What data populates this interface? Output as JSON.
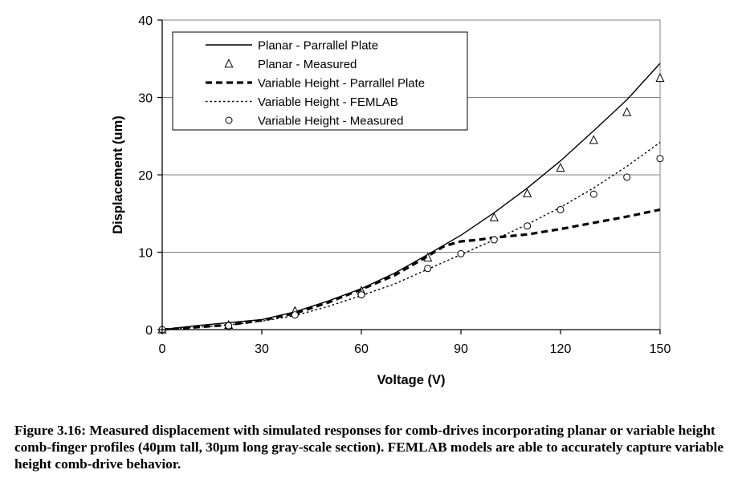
{
  "chart_data": {
    "type": "line",
    "title": "",
    "xlabel": "Voltage (V)",
    "ylabel": "Displacement (um)",
    "xlim": [
      0,
      150
    ],
    "ylim": [
      0,
      40
    ],
    "x_ticks": [
      "0",
      "30",
      "60",
      "90",
      "120",
      "150"
    ],
    "y_ticks": [
      "0",
      "10",
      "20",
      "30",
      "40"
    ],
    "grid": "horizontal",
    "legend_position": "top-left",
    "series": [
      {
        "name": "Planar - Parrallel Plate",
        "style": "solid",
        "x": [
          0,
          10,
          20,
          30,
          40,
          50,
          60,
          70,
          80,
          90,
          100,
          110,
          120,
          130,
          140,
          150
        ],
        "y": [
          0,
          0.5,
          0.9,
          1.3,
          2.3,
          3.7,
          5.3,
          7.3,
          9.7,
          12.2,
          15.1,
          18.3,
          21.8,
          25.7,
          29.7,
          34.4
        ]
      },
      {
        "name": "Planar - Measured",
        "style": "triangle",
        "x": [
          0,
          20,
          40,
          60,
          80,
          100,
          110,
          120,
          130,
          140,
          150
        ],
        "y": [
          0,
          0.6,
          2.4,
          5.0,
          9.3,
          14.5,
          17.6,
          20.9,
          24.5,
          28.1,
          32.5
        ]
      },
      {
        "name": "Variable Height - Parrallel Plate",
        "style": "dashed",
        "x": [
          0,
          10,
          20,
          30,
          40,
          50,
          60,
          70,
          80,
          85,
          90,
          95,
          100,
          110,
          120,
          130,
          140,
          150
        ],
        "y": [
          0,
          0.3,
          0.6,
          1.2,
          2.1,
          3.5,
          5.2,
          7.0,
          9.5,
          10.8,
          11.4,
          11.6,
          11.9,
          12.3,
          13.0,
          13.8,
          14.6,
          15.5
        ]
      },
      {
        "name": "Variable Height - FEMLAB",
        "style": "dotted",
        "x": [
          0,
          10,
          20,
          30,
          40,
          50,
          60,
          70,
          80,
          90,
          100,
          110,
          120,
          130,
          140,
          150
        ],
        "y": [
          0,
          0.3,
          0.6,
          1.1,
          1.8,
          3.0,
          4.4,
          5.9,
          7.8,
          9.7,
          11.6,
          13.6,
          15.8,
          18.3,
          21.1,
          24.2
        ]
      },
      {
        "name": "Variable Height - Measured",
        "style": "circle",
        "x": [
          0,
          20,
          40,
          60,
          80,
          90,
          100,
          110,
          120,
          130,
          140,
          150
        ],
        "y": [
          0,
          0.5,
          1.9,
          4.5,
          7.9,
          9.8,
          11.6,
          13.4,
          15.5,
          17.5,
          19.7,
          22.1
        ]
      }
    ]
  },
  "caption": "Figure 3.16: Measured displacement with simulated responses for comb-drives incorporating planar or variable height comb-finger profiles (40µm tall, 30µm long gray-scale section).  FEMLAB models are able to accurately capture variable height comb-drive behavior."
}
